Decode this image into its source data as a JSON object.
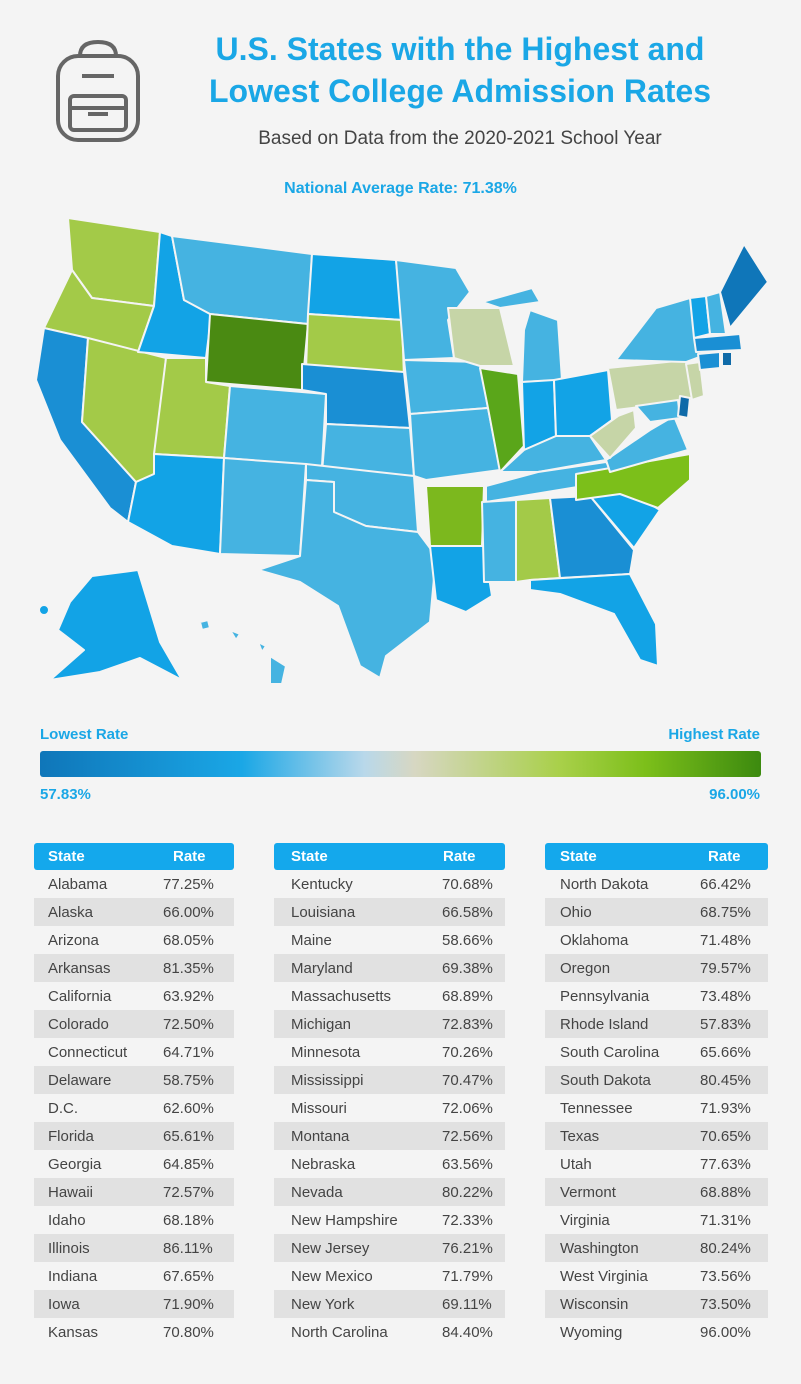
{
  "header": {
    "title_line1": "U.S. States with the Highest and",
    "title_line2": "Lowest College Admission Rates",
    "subtitle": "Based on Data from the 2020-2021 School Year",
    "national_average": "National Average Rate: 71.38%"
  },
  "icon": "backpack-icon",
  "legend": {
    "low_label": "Lowest Rate",
    "high_label": "Highest Rate",
    "low_value": "57.83%",
    "high_value": "96.00%",
    "colors": [
      "#0f76b9",
      "#1aa7e6",
      "#d7d7c2",
      "#7cbf1a",
      "#3c8a0f"
    ]
  },
  "table_headers": {
    "state": "State",
    "rate": "Rate"
  },
  "columns": [
    [
      {
        "state": "Alabama",
        "rate": "77.25%"
      },
      {
        "state": "Alaska",
        "rate": "66.00%"
      },
      {
        "state": "Arizona",
        "rate": "68.05%"
      },
      {
        "state": "Arkansas",
        "rate": "81.35%"
      },
      {
        "state": "California",
        "rate": "63.92%"
      },
      {
        "state": "Colorado",
        "rate": "72.50%"
      },
      {
        "state": "Connecticut",
        "rate": "64.71%"
      },
      {
        "state": "Delaware",
        "rate": "58.75%"
      },
      {
        "state": "D.C.",
        "rate": "62.60%"
      },
      {
        "state": "Florida",
        "rate": "65.61%"
      },
      {
        "state": "Georgia",
        "rate": "64.85%"
      },
      {
        "state": "Hawaii",
        "rate": "72.57%"
      },
      {
        "state": "Idaho",
        "rate": "68.18%"
      },
      {
        "state": "Illinois",
        "rate": "86.11%"
      },
      {
        "state": "Indiana",
        "rate": "67.65%"
      },
      {
        "state": "Iowa",
        "rate": "71.90%"
      },
      {
        "state": "Kansas",
        "rate": "70.80%"
      }
    ],
    [
      {
        "state": "Kentucky",
        "rate": "70.68%"
      },
      {
        "state": "Louisiana",
        "rate": "66.58%"
      },
      {
        "state": "Maine",
        "rate": "58.66%"
      },
      {
        "state": "Maryland",
        "rate": "69.38%"
      },
      {
        "state": "Massachusetts",
        "rate": "68.89%"
      },
      {
        "state": "Michigan",
        "rate": "72.83%"
      },
      {
        "state": "Minnesota",
        "rate": "70.26%"
      },
      {
        "state": "Mississippi",
        "rate": "70.47%"
      },
      {
        "state": "Missouri",
        "rate": "72.06%"
      },
      {
        "state": "Montana",
        "rate": "72.56%"
      },
      {
        "state": "Nebraska",
        "rate": "63.56%"
      },
      {
        "state": "Nevada",
        "rate": "80.22%"
      },
      {
        "state": "New Hampshire",
        "rate": "72.33%"
      },
      {
        "state": "New Jersey",
        "rate": "76.21%"
      },
      {
        "state": "New Mexico",
        "rate": "71.79%"
      },
      {
        "state": "New York",
        "rate": "69.11%"
      },
      {
        "state": "North Carolina",
        "rate": "84.40%"
      }
    ],
    [
      {
        "state": "North Dakota",
        "rate": "66.42%"
      },
      {
        "state": "Ohio",
        "rate": "68.75%"
      },
      {
        "state": "Oklahoma",
        "rate": "71.48%"
      },
      {
        "state": "Oregon",
        "rate": "79.57%"
      },
      {
        "state": "Pennsylvania",
        "rate": "73.48%"
      },
      {
        "state": "Rhode Island",
        "rate": "57.83%"
      },
      {
        "state": "South Carolina",
        "rate": "65.66%"
      },
      {
        "state": "South Dakota",
        "rate": "80.45%"
      },
      {
        "state": "Tennessee",
        "rate": "71.93%"
      },
      {
        "state": "Texas",
        "rate": "70.65%"
      },
      {
        "state": "Utah",
        "rate": "77.63%"
      },
      {
        "state": "Vermont",
        "rate": "68.88%"
      },
      {
        "state": "Virginia",
        "rate": "71.31%"
      },
      {
        "state": "Washington",
        "rate": "80.24%"
      },
      {
        "state": "West Virginia",
        "rate": "73.56%"
      },
      {
        "state": "Wisconsin",
        "rate": "73.50%"
      },
      {
        "state": "Wyoming",
        "rate": "96.00%"
      }
    ]
  ]
}
